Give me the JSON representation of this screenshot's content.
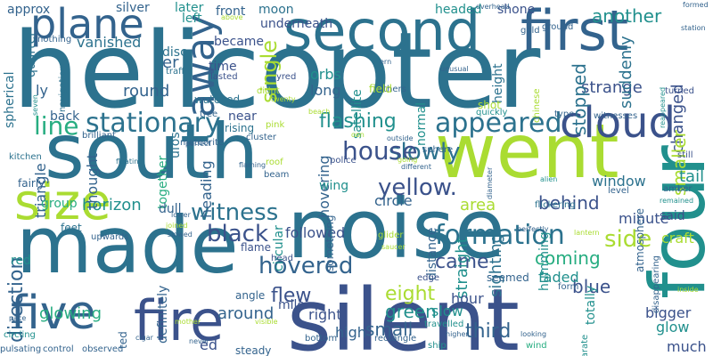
{
  "palette": {
    "c0": "#440154",
    "c1": "#482677",
    "c2": "#3b528b",
    "c3": "#33638d",
    "c4": "#2c728e",
    "c5": "#21908d",
    "c6": "#27ad81",
    "c7": "#5dc863",
    "c8": "#aadc32",
    "c9": "#d8e219",
    "c10": "#fde725"
  },
  "words": [
    {
      "text": "helicopter",
      "color": "c4"
    },
    {
      "text": "silent",
      "color": "c2"
    },
    {
      "text": "noise",
      "color": "c4"
    },
    {
      "text": "south",
      "color": "c4"
    },
    {
      "text": "went",
      "color": "c8"
    },
    {
      "text": "made",
      "color": "c4"
    },
    {
      "text": "second",
      "color": "c4"
    },
    {
      "text": "first",
      "color": "c3"
    },
    {
      "text": "four",
      "color": "c5"
    },
    {
      "text": "fire",
      "color": "c2"
    },
    {
      "text": "size",
      "color": "c8"
    },
    {
      "text": "five",
      "color": "c3"
    },
    {
      "text": "plane",
      "color": "c3"
    },
    {
      "text": "cloud",
      "color": "c2"
    },
    {
      "text": "away",
      "color": "c3"
    },
    {
      "text": "stationary",
      "color": "c4"
    },
    {
      "text": "appeared",
      "color": "c4"
    },
    {
      "text": "formation",
      "color": "c4"
    },
    {
      "text": "yellow.",
      "color": "c2"
    },
    {
      "text": "slowly",
      "color": "c4"
    },
    {
      "text": "house",
      "color": "c2"
    },
    {
      "text": "hovered",
      "color": "c3"
    },
    {
      "text": "witness",
      "color": "c4"
    },
    {
      "text": "black",
      "color": "c2"
    },
    {
      "text": "direction",
      "color": "c3"
    },
    {
      "text": "line",
      "color": "c6"
    },
    {
      "text": "flashing",
      "color": "c5"
    },
    {
      "text": "single",
      "color": "c8"
    },
    {
      "text": "side",
      "color": "c8"
    },
    {
      "text": "came",
      "color": "c2"
    },
    {
      "text": "coming",
      "color": "c6"
    },
    {
      "text": "blue",
      "color": "c2"
    },
    {
      "text": "eight",
      "color": "c8"
    },
    {
      "text": "flew",
      "color": "c2"
    },
    {
      "text": "green",
      "color": "c5"
    },
    {
      "text": "small",
      "color": "c3"
    },
    {
      "text": "third",
      "color": "c3"
    },
    {
      "text": "glowing",
      "color": "c6"
    },
    {
      "text": "around",
      "color": "c3"
    },
    {
      "text": "round",
      "color": "c3"
    },
    {
      "text": "strange",
      "color": "c2"
    },
    {
      "text": "changed",
      "color": "c2"
    },
    {
      "text": "smaller",
      "color": "c8"
    },
    {
      "text": "another",
      "color": "c5"
    },
    {
      "text": "suddenly",
      "color": "c4"
    },
    {
      "text": "stopped",
      "color": "c4"
    },
    {
      "text": "behind",
      "color": "c2"
    },
    {
      "text": "window",
      "color": "c4"
    },
    {
      "text": "tail",
      "color": "c5"
    },
    {
      "text": "minute",
      "color": "c2"
    },
    {
      "text": "area",
      "color": "c8"
    },
    {
      "text": "sighting",
      "color": "c4"
    },
    {
      "text": "straight",
      "color": "c5"
    },
    {
      "text": "distance",
      "color": "c3"
    },
    {
      "text": "hovering",
      "color": "c3"
    },
    {
      "text": "circle",
      "color": "c3"
    },
    {
      "text": "horizon",
      "color": "c5"
    },
    {
      "text": "faded",
      "color": "c5"
    },
    {
      "text": "humming",
      "color": "c5"
    },
    {
      "text": "followed",
      "color": "c2"
    },
    {
      "text": "craft",
      "color": "c8"
    },
    {
      "text": "said",
      "color": "c2"
    },
    {
      "text": "bigger",
      "color": "c2"
    },
    {
      "text": "glow",
      "color": "c5"
    },
    {
      "text": "hour",
      "color": "c2"
    },
    {
      "text": "slow",
      "color": "c5"
    },
    {
      "text": "right",
      "color": "c2"
    },
    {
      "text": "high",
      "color": "c3"
    },
    {
      "text": "much",
      "color": "c2"
    },
    {
      "text": "totally",
      "color": "c5"
    },
    {
      "text": "mile",
      "color": "c2"
    },
    {
      "text": "definitely",
      "color": "c3"
    },
    {
      "text": "orbs",
      "color": "c5"
    },
    {
      "text": "long",
      "color": "c3"
    },
    {
      "text": "satellite",
      "color": "c5"
    },
    {
      "text": "height",
      "color": "c4"
    },
    {
      "text": "moon",
      "color": "c4"
    },
    {
      "text": "underneath",
      "color": "c2"
    },
    {
      "text": "headed",
      "color": "c5"
    },
    {
      "text": "shone",
      "color": "c2"
    },
    {
      "text": "front",
      "color": "c3"
    },
    {
      "text": "later",
      "color": "c5"
    },
    {
      "text": "left",
      "color": "c5"
    },
    {
      "text": "approx",
      "color": "c3"
    },
    {
      "text": "silver",
      "color": "c3"
    },
    {
      "text": "vanished",
      "color": "c4"
    },
    {
      "text": "disc",
      "color": "c4"
    },
    {
      "text": "er",
      "color": "c3"
    },
    {
      "text": "time",
      "color": "c2"
    },
    {
      "text": "became",
      "color": "c2"
    },
    {
      "text": "lasted",
      "color": "c2"
    },
    {
      "text": "ly",
      "color": "c3"
    },
    {
      "text": "watched",
      "color": "c4"
    },
    {
      "text": "back",
      "color": "c3"
    },
    {
      "text": "near",
      "color": "c2"
    },
    {
      "text": "rising",
      "color": "c4"
    },
    {
      "text": "thought",
      "color": "c3"
    },
    {
      "text": "together",
      "color": "c6"
    },
    {
      "text": "ufos",
      "color": "c4"
    },
    {
      "text": "heading",
      "color": "c3"
    },
    {
      "text": "triangle",
      "color": "c3"
    },
    {
      "text": "group",
      "color": "c6"
    },
    {
      "text": "wing",
      "color": "c5"
    },
    {
      "text": "circular",
      "color": "c5"
    },
    {
      "text": "something",
      "color": "c3"
    },
    {
      "text": "dull",
      "color": "c3"
    },
    {
      "text": "flame",
      "color": "c2"
    },
    {
      "text": "seemed",
      "color": "c3"
    },
    {
      "text": "flickering",
      "color": "c4"
    },
    {
      "text": "normal",
      "color": "c5"
    },
    {
      "text": "level",
      "color": "c3"
    },
    {
      "text": "atmosphere",
      "color": "c3"
    },
    {
      "text": "disappearing",
      "color": "c3"
    },
    {
      "text": "spherical",
      "color": "c4"
    },
    {
      "text": "quarter",
      "color": "c4"
    },
    {
      "text": "nothing",
      "color": "c3"
    },
    {
      "text": "navigation",
      "color": "c4"
    },
    {
      "text": "brilliant",
      "color": "c3"
    },
    {
      "text": "meteorite",
      "color": "c3"
    },
    {
      "text": "kitchen",
      "color": "c4"
    },
    {
      "text": "fairly",
      "color": "c3"
    },
    {
      "text": "feet",
      "color": "c4"
    },
    {
      "text": "upwards",
      "color": "c3"
    },
    {
      "text": "red",
      "color": "c5"
    },
    {
      "text": "circling",
      "color": "c5"
    },
    {
      "text": "control",
      "color": "c3"
    },
    {
      "text": "observed",
      "color": "c3"
    },
    {
      "text": "pulsating",
      "color": "c3"
    },
    {
      "text": "steady",
      "color": "c3"
    },
    {
      "text": "bottom",
      "color": "c3"
    },
    {
      "text": "rectangle",
      "color": "c3"
    },
    {
      "text": "ship",
      "color": "c5"
    },
    {
      "text": "wind",
      "color": "c6"
    },
    {
      "text": "separate",
      "color": "c5"
    },
    {
      "text": "looking",
      "color": "c3"
    },
    {
      "text": "higher",
      "color": "c3"
    },
    {
      "text": "travelled",
      "color": "c5"
    },
    {
      "text": "edge",
      "color": "c2"
    },
    {
      "text": "form",
      "color": "c3"
    },
    {
      "text": "glider",
      "color": "c8"
    },
    {
      "text": "saucer",
      "color": "c8"
    },
    {
      "text": "perfectly",
      "color": "c3"
    },
    {
      "text": "lantern",
      "color": "c8"
    },
    {
      "text": "diameter",
      "color": "c3"
    },
    {
      "text": "alien",
      "color": "c5"
    },
    {
      "text": "amber",
      "color": "c3"
    },
    {
      "text": "still",
      "color": "c2"
    },
    {
      "text": "remained",
      "color": "c5"
    },
    {
      "text": "witnesses",
      "color": "c3"
    },
    {
      "text": "type",
      "color": "c3"
    },
    {
      "text": "reappeared",
      "color": "c5"
    },
    {
      "text": "turned",
      "color": "c2"
    },
    {
      "text": "chinese",
      "color": "c8"
    },
    {
      "text": "unusual",
      "color": "c3"
    },
    {
      "text": "quickly",
      "color": "c5"
    },
    {
      "text": "shot",
      "color": "c8"
    },
    {
      "text": "gold",
      "color": "c3"
    },
    {
      "text": "ground",
      "color": "c3"
    },
    {
      "text": "overhead",
      "color": "c3"
    },
    {
      "text": "formed",
      "color": "c3"
    },
    {
      "text": "station",
      "color": "c3"
    },
    {
      "text": "others",
      "color": "c3"
    },
    {
      "text": "field",
      "color": "c8"
    },
    {
      "text": "ern",
      "color": "c3"
    },
    {
      "text": "yred",
      "color": "c2"
    },
    {
      "text": "traffic",
      "color": "c4"
    },
    {
      "text": "didnt",
      "color": "c8"
    },
    {
      "text": "twenty",
      "color": "c8"
    },
    {
      "text": "tree",
      "color": "c3"
    },
    {
      "text": "pink",
      "color": "c8"
    },
    {
      "text": "beach",
      "color": "c8"
    },
    {
      "text": "outside",
      "color": "c3"
    },
    {
      "text": "sphere",
      "color": "c3"
    },
    {
      "text": "police",
      "color": "c2"
    },
    {
      "text": "going",
      "color": "c8"
    },
    {
      "text": "perfect",
      "color": "c3"
    },
    {
      "text": "floating",
      "color": "c4"
    },
    {
      "text": "roof",
      "color": "c8"
    },
    {
      "text": "beam",
      "color": "c3"
    },
    {
      "text": "cluster",
      "color": "c3"
    },
    {
      "text": "flaming",
      "color": "c3"
    },
    {
      "text": "head",
      "color": "c2"
    },
    {
      "text": "joined",
      "color": "c8"
    },
    {
      "text": "slowed",
      "color": "c3"
    },
    {
      "text": "lower",
      "color": "c3"
    },
    {
      "text": "mother",
      "color": "c8"
    },
    {
      "text": "pace",
      "color": "c3"
    },
    {
      "text": "seven",
      "color": "c5"
    },
    {
      "text": "never",
      "color": "c3"
    },
    {
      "text": "cigar",
      "color": "c3"
    },
    {
      "text": "ted",
      "color": "c3"
    },
    {
      "text": "visible",
      "color": "c8"
    },
    {
      "text": "ed",
      "color": "c2"
    },
    {
      "text": "inside",
      "color": "c8"
    },
    {
      "text": "above",
      "color": "c8"
    },
    {
      "text": "oon",
      "color": "c8"
    },
    {
      "text": "different",
      "color": "c3"
    },
    {
      "text": "angle",
      "color": "c3"
    }
  ]
}
